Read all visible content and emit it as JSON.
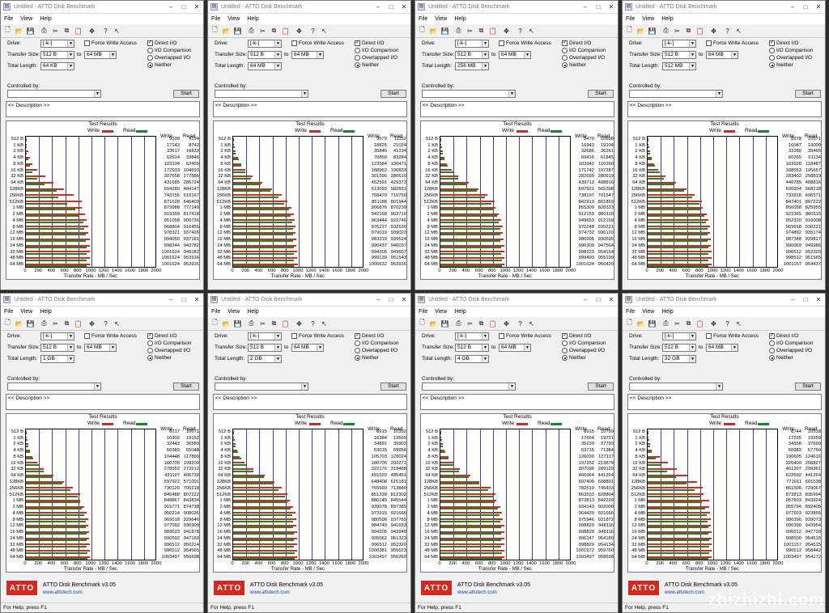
{
  "app": {
    "title": "Untitled - ATTO Disk Benchmark",
    "menu": [
      "File",
      "View",
      "Help"
    ],
    "labels": {
      "drive": "Drive:",
      "transfer_size": "Transfer Size:",
      "to": "to",
      "total_length": "Total Length:",
      "force_write_access": "Force Write Access",
      "direct_io": "Direct I/O",
      "io_comparison": "I/O Comparison",
      "overlapped_io": "Overlapped I/O",
      "neither": "Neither",
      "controlled_by": "Controlled by:",
      "start": "Start",
      "description": "<< Description >>",
      "test_results": "Test Results",
      "write": "Write",
      "read": "Read",
      "transfer_rate": "Transfer Rate - MB / Sec"
    },
    "drive_value": "[-k-]",
    "transfer_from": "512 B",
    "transfer_to": "64 MB",
    "footer_name": "ATTO Disk Benchmark v3.05",
    "footer_url": "www.attotech.com",
    "logo_text": "ATTO",
    "status_text": "For Help, press F1",
    "colors": {
      "write": "#d42a1f",
      "read": "#138a2a",
      "grid": "#3a3ad0"
    }
  },
  "chart_data": {
    "type": "bar",
    "categories": [
      "512 B",
      "1 KB",
      "2 KB",
      "4 KB",
      "8 KB",
      "16 KB",
      "32 KB",
      "64 KB",
      "128KB",
      "256KB",
      "512KB",
      "1 MB",
      "2 MB",
      "4 MB",
      "8 MB",
      "12 MB",
      "16 MB",
      "24 MB",
      "32 MB",
      "48 MB",
      "64 MB"
    ],
    "x_ticks": [
      "0",
      "200",
      "400",
      "600",
      "800",
      "1000",
      "1200",
      "1400",
      "1600",
      "1800",
      "2000"
    ],
    "xlim": [
      0,
      2000
    ],
    "xlabel": "Transfer Rate - MB / Sec",
    "windows": [
      {
        "total_length": "64 KB",
        "write": [
          9338,
          17143,
          33617,
          62914,
          103104,
          172933,
          307658,
          431685,
          594280,
          743155,
          871628,
          873988,
          919399,
          951058,
          968804,
          978321,
          994050,
          998244,
          1001624,
          1001624,
          1001624
        ],
        "read": [
          4194,
          8743,
          16833,
          33846,
          62455,
          104693,
          177586,
          286724,
          484147,
          510167,
          646403,
          777149,
          817418,
          900726,
          916455,
          937426,
          937181,
          943782,
          949182,
          953916,
          953916
        ]
      },
      {
        "total_length": "64 MB",
        "write": [
          9679,
          18825,
          35845,
          70850,
          123584,
          188962,
          301596,
          452591,
          613093,
          758470,
          851188,
          906876,
          942168,
          963444,
          976227,
          979019,
          983319,
          990437,
          994205,
          999139,
          1006632
        ],
        "read": [
          11152,
          21024,
          41234,
          83284,
          130471,
          190833,
          280610,
          429373,
          582831,
          710750,
          801944,
          870239,
          903710,
          922746,
          932530,
          939023,
          939524,
          946037,
          949607,
          951543,
          953916
        ]
      },
      {
        "total_length": "256 MB",
        "write": [
          8470,
          16343,
          32686,
          60416,
          103942,
          171742,
          282699,
          439713,
          597922,
          738197,
          842913,
          855309,
          912159,
          949653,
          970248,
          974732,
          986995,
          996309,
          998223,
          999493,
          1001624
        ],
        "read": [
          10698,
          19104,
          36261,
          61845,
          116260,
          197287,
          280619,
          408816,
          565398,
          701547,
          801869,
          828333,
          880116,
          912159,
          930221,
          936120,
          930595,
          947564,
          954154,
          955199,
          956420
        ]
      },
      {
        "total_length": "512 MB",
        "write": [
          8278,
          16087,
          33280,
          60265,
          103928,
          168553,
          283402,
          440785,
          600904,
          733918,
          847401,
          856058,
          922365,
          952320,
          969918,
          974892,
          987348,
          990069,
          996512,
          998512,
          1001157
        ],
        "read": [
          10571,
          19009,
          35465,
          61134,
          118487,
          195657,
          258819,
          408816,
          568218,
          696571,
          807222,
          825955,
          880116,
          916008,
          930221,
          935174,
          939817,
          949986,
          952320,
          951565,
          954437
        ]
      },
      {
        "total_length": "1 GB",
        "write": [
          8217,
          16302,
          32443,
          60383,
          104448,
          180705,
          278552,
          431197,
          597922,
          730120,
          845488,
          848867,
          915771,
          950214,
          969518,
          977092,
          989623,
          990592,
          996512,
          996512,
          1003497
        ],
        "read": [
          10671,
          19152,
          36589,
          65048,
          117899,
          199209,
          273212,
          406739,
          571001,
          700218,
          807222,
          843834,
          874738,
          908026,
          929646,
          936909,
          941878,
          947160,
          950214,
          954565,
          956698
        ]
      },
      {
        "total_length": "2 GB",
        "write": [
          8915,
          16384,
          34891,
          63015,
          105703,
          180705,
          322176,
          491520,
          648408,
          755569,
          851338,
          886145,
          939078,
          973915,
          980598,
          984749,
          994205,
          995062,
          996512,
          1000381,
          1003497
        ],
        "read": [
          10392,
          19565,
          35903,
          69956,
          129024,
          202271,
          319488,
          485451,
          615181,
          713840,
          812302,
          845544,
          897385,
          921666,
          937765,
          941653,
          943948,
          951323,
          952320,
          955523,
          956260
        ]
      },
      {
        "total_length": "4 GB",
        "write": [
          8915,
          17664,
          35239,
          63715,
          126030,
          197252,
          307096,
          466964,
          607406,
          782519,
          863533,
          873813,
          934143,
          964429,
          975946,
          998829,
          998829,
          996147,
          998829,
          1001972,
          1003497
        ],
        "read": [
          10799,
          19721,
          37793,
          71984,
          127117,
          213879,
          289129,
          441264,
          608891,
          745433,
          828804,
          842229,
          902000,
          921666,
          931872,
          948116,
          948116,
          954180,
          954134,
          959760,
          958698
        ]
      },
      {
        "total_length": "32 GB",
        "write": [
          8744,
          17235,
          34556,
          60982,
          190605,
          320409,
          461297,
          622592,
          771011,
          861506,
          873813,
          957603,
          955794,
          977603,
          980390,
          990390,
          996512,
          998500,
          1001157,
          996512,
          1003497
        ],
        "read": [
          10518,
          19259,
          37699,
          67760,
          124616,
          206827,
          299361,
          441264,
          601538,
          729067,
          835994,
          843924,
          892405,
          923855,
          939073,
          943954,
          947730,
          954515,
          954515,
          958442,
          954172
        ]
      }
    ]
  },
  "watermark": "zhizhizhi.com"
}
